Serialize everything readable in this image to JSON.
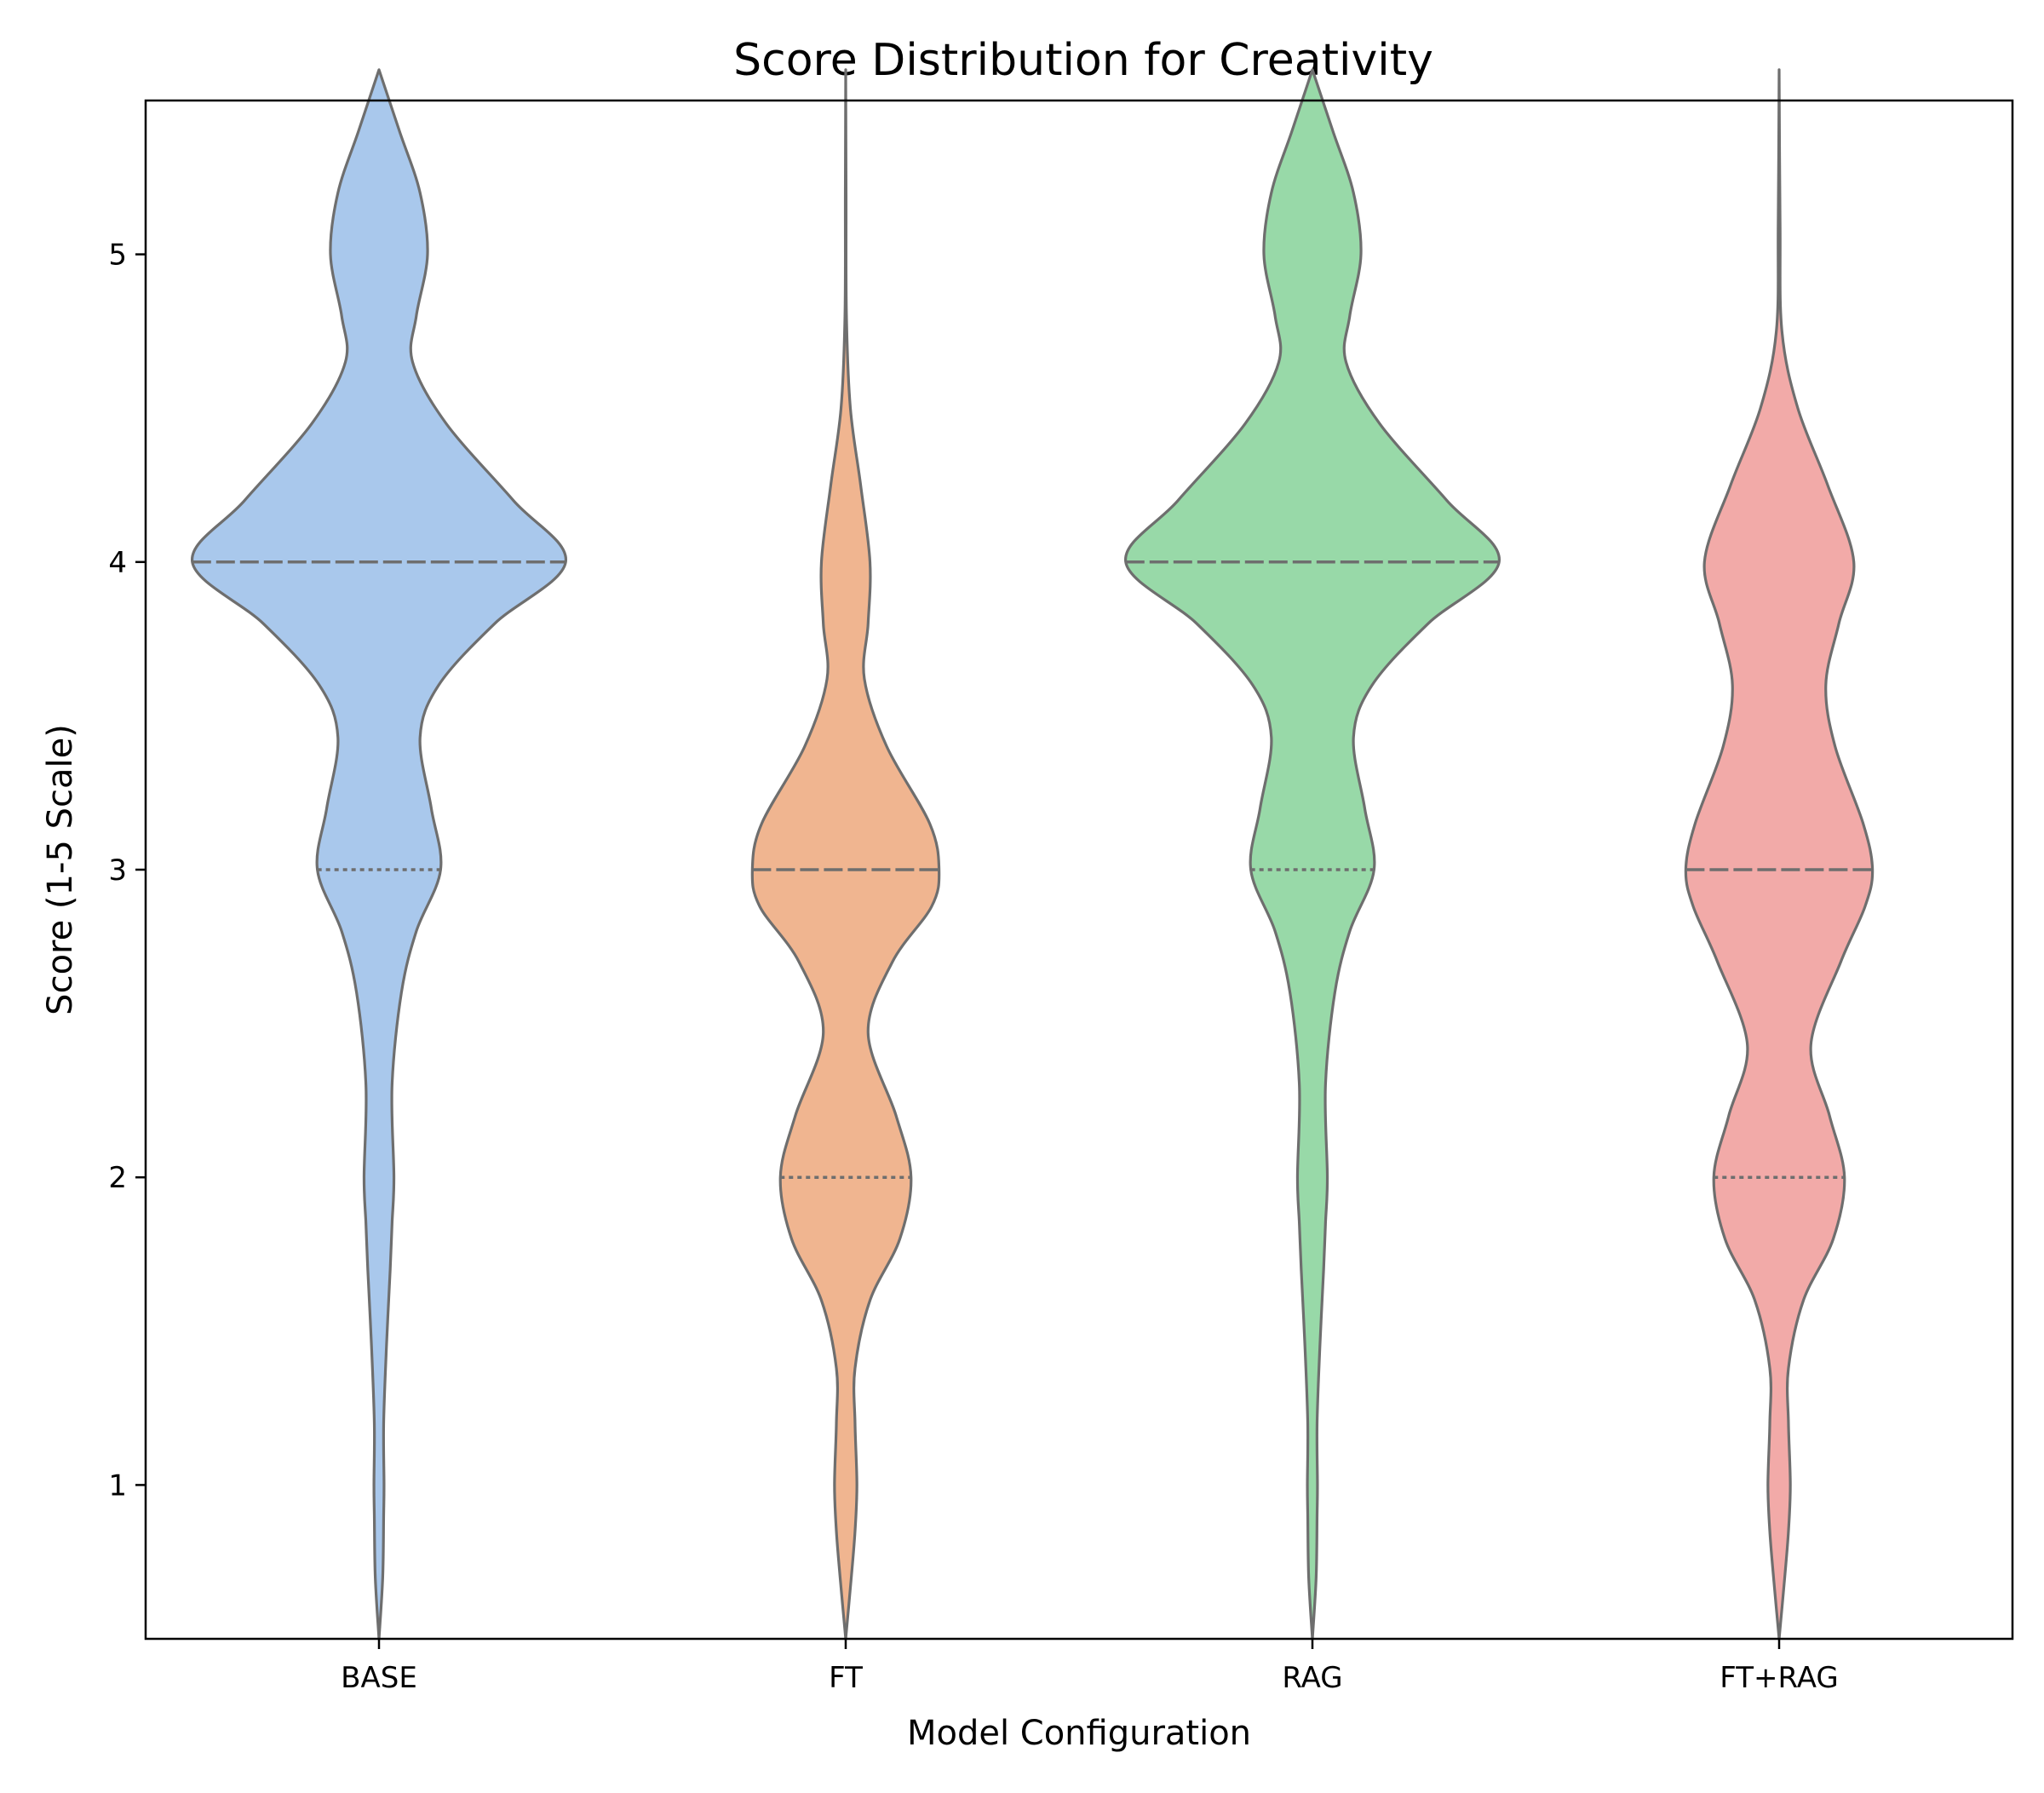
{
  "chart_data": {
    "type": "violin",
    "title": "Score Distribution for Creativity",
    "xlabel": "Model Configuration",
    "ylabel": "Score (1-5 Scale)",
    "ylim": [
      0.5,
      5.5
    ],
    "yticks": [
      1,
      2,
      3,
      4,
      5
    ],
    "grid": false,
    "edge_color": "#6e6e6e",
    "categories": [
      "BASE",
      "FT",
      "RAG",
      "FT+RAG"
    ],
    "series": [
      {
        "category": "BASE",
        "color": "#a9c8ec",
        "range": [
          0.5,
          5.6
        ],
        "median": 4,
        "quartiles": [
          3,
          4
        ],
        "density": [
          [
            0.5,
            0.0
          ],
          [
            0.7,
            0.02
          ],
          [
            0.9,
            0.025
          ],
          [
            1.0,
            0.027
          ],
          [
            1.2,
            0.025
          ],
          [
            1.45,
            0.04
          ],
          [
            1.7,
            0.06
          ],
          [
            1.85,
            0.07
          ],
          [
            2.0,
            0.08
          ],
          [
            2.3,
            0.07
          ],
          [
            2.6,
            0.12
          ],
          [
            2.8,
            0.2
          ],
          [
            3.0,
            0.33
          ],
          [
            3.2,
            0.28
          ],
          [
            3.43,
            0.22
          ],
          [
            3.6,
            0.32
          ],
          [
            3.8,
            0.62
          ],
          [
            4.0,
            1.0
          ],
          [
            4.2,
            0.72
          ],
          [
            4.45,
            0.36
          ],
          [
            4.65,
            0.18
          ],
          [
            4.8,
            0.2
          ],
          [
            5.0,
            0.26
          ],
          [
            5.2,
            0.22
          ],
          [
            5.4,
            0.11
          ],
          [
            5.6,
            0.0
          ]
        ]
      },
      {
        "category": "FT",
        "color": "#f0b590",
        "range": [
          0.5,
          5.6
        ],
        "median": 3,
        "quartiles": [
          2,
          3
        ],
        "density": [
          [
            0.5,
            0.0
          ],
          [
            0.7,
            0.03
          ],
          [
            0.85,
            0.05
          ],
          [
            1.0,
            0.06
          ],
          [
            1.2,
            0.05
          ],
          [
            1.38,
            0.05
          ],
          [
            1.6,
            0.13
          ],
          [
            1.8,
            0.29
          ],
          [
            2.0,
            0.35
          ],
          [
            2.2,
            0.27
          ],
          [
            2.47,
            0.12
          ],
          [
            2.7,
            0.25
          ],
          [
            2.88,
            0.46
          ],
          [
            3.0,
            0.5
          ],
          [
            3.15,
            0.45
          ],
          [
            3.4,
            0.22
          ],
          [
            3.62,
            0.1
          ],
          [
            3.8,
            0.12
          ],
          [
            4.0,
            0.13
          ],
          [
            4.25,
            0.08
          ],
          [
            4.5,
            0.025
          ],
          [
            4.8,
            0.004
          ],
          [
            5.2,
            0.002
          ],
          [
            5.6,
            0.0
          ]
        ]
      },
      {
        "category": "RAG",
        "color": "#98d9a8",
        "range": [
          0.5,
          5.6
        ],
        "median": 4,
        "quartiles": [
          3,
          4
        ],
        "density": [
          [
            0.5,
            0.0
          ],
          [
            0.7,
            0.02
          ],
          [
            0.9,
            0.025
          ],
          [
            1.0,
            0.027
          ],
          [
            1.2,
            0.025
          ],
          [
            1.45,
            0.04
          ],
          [
            1.7,
            0.06
          ],
          [
            1.85,
            0.07
          ],
          [
            2.0,
            0.08
          ],
          [
            2.3,
            0.07
          ],
          [
            2.6,
            0.12
          ],
          [
            2.8,
            0.2
          ],
          [
            3.0,
            0.33
          ],
          [
            3.2,
            0.28
          ],
          [
            3.43,
            0.22
          ],
          [
            3.6,
            0.32
          ],
          [
            3.8,
            0.62
          ],
          [
            4.0,
            1.0
          ],
          [
            4.2,
            0.72
          ],
          [
            4.45,
            0.36
          ],
          [
            4.65,
            0.18
          ],
          [
            4.8,
            0.2
          ],
          [
            5.0,
            0.26
          ],
          [
            5.2,
            0.22
          ],
          [
            5.4,
            0.11
          ],
          [
            5.6,
            0.0
          ]
        ]
      },
      {
        "category": "FT+RAG",
        "color": "#f2aaa8",
        "range": [
          0.5,
          5.6
        ],
        "median": 3,
        "quartiles": [
          2,
          3
        ],
        "density": [
          [
            0.5,
            0.0
          ],
          [
            0.7,
            0.03
          ],
          [
            0.85,
            0.05
          ],
          [
            1.0,
            0.06
          ],
          [
            1.2,
            0.05
          ],
          [
            1.38,
            0.05
          ],
          [
            1.6,
            0.13
          ],
          [
            1.8,
            0.29
          ],
          [
            2.0,
            0.35
          ],
          [
            2.2,
            0.27
          ],
          [
            2.43,
            0.17
          ],
          [
            2.7,
            0.33
          ],
          [
            2.88,
            0.46
          ],
          [
            3.0,
            0.5
          ],
          [
            3.15,
            0.45
          ],
          [
            3.4,
            0.3
          ],
          [
            3.6,
            0.25
          ],
          [
            3.8,
            0.32
          ],
          [
            4.0,
            0.4
          ],
          [
            4.25,
            0.26
          ],
          [
            4.5,
            0.1
          ],
          [
            4.75,
            0.015
          ],
          [
            5.1,
            0.005
          ],
          [
            5.6,
            0.0
          ]
        ]
      }
    ]
  }
}
